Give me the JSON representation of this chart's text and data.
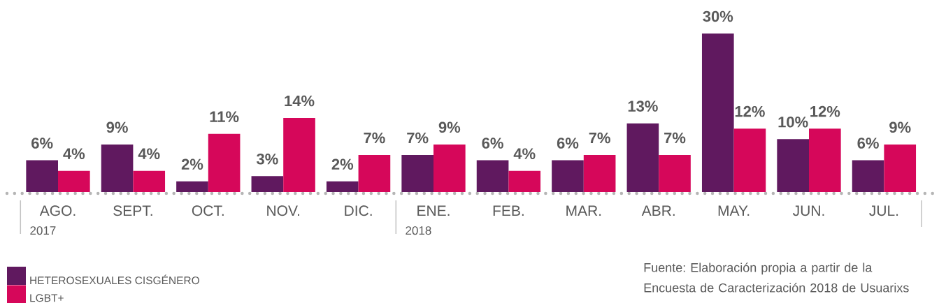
{
  "chart_data": {
    "type": "bar",
    "categories": [
      "AGO.",
      "SEPT.",
      "OCT.",
      "NOV.",
      "DIC.",
      "ENE.",
      "FEB.",
      "MAR.",
      "ABR.",
      "MAY.",
      "JUN.",
      "JUL."
    ],
    "series": [
      {
        "name": "HETEROSEXUALES CISGÉNERO",
        "color": "#60195f",
        "values": [
          6,
          9,
          2,
          3,
          2,
          7,
          6,
          6,
          13,
          30,
          10,
          6
        ],
        "value_labels": [
          "6%",
          "9%",
          "2%",
          "3%",
          "2%",
          "7%",
          "6%",
          "6%",
          "13%",
          "30%",
          "10%",
          "6%"
        ]
      },
      {
        "name": "LGBT+",
        "color": "#d6075a",
        "values": [
          4,
          4,
          11,
          14,
          7,
          9,
          4,
          7,
          7,
          12,
          12,
          9
        ],
        "value_labels": [
          "4%",
          "4%",
          "11%",
          "14%",
          "7%",
          "9%",
          "4%",
          "7%",
          "7%",
          "12%",
          "12%",
          "9%"
        ]
      }
    ],
    "legend": "bottom left",
    "annotations": [
      "2017",
      "2018",
      "Fuente: Elaboración propia a partir de la Encuesta de Caracterización 2018 de Usuarixs"
    ]
  }
}
